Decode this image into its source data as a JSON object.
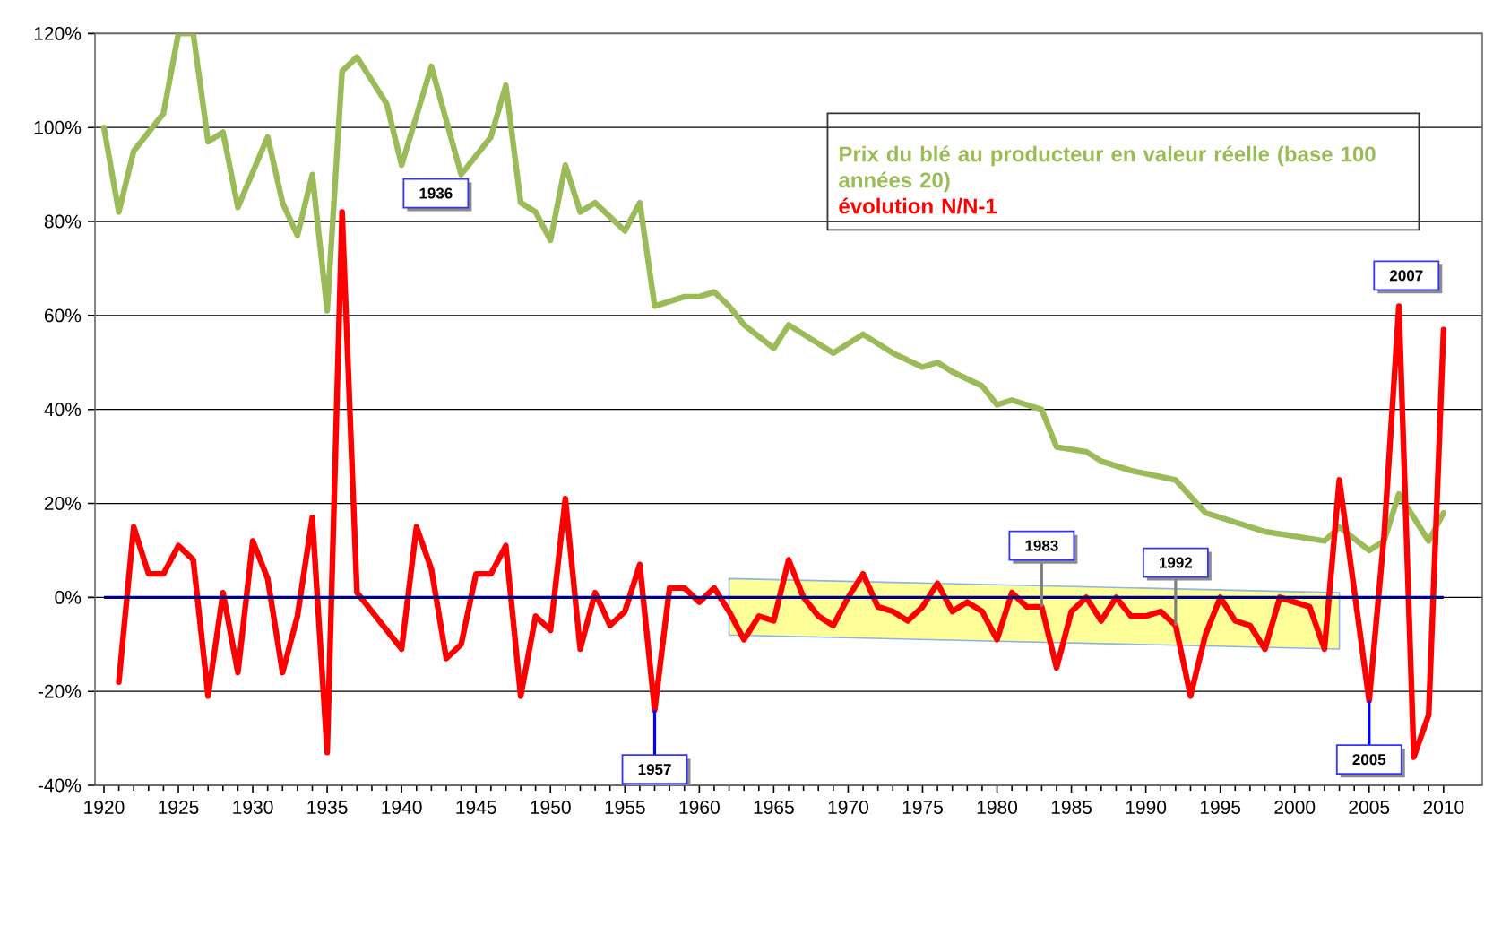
{
  "chart_data": {
    "type": "line",
    "xlim": [
      1919.4,
      2012.6
    ],
    "ylim": [
      -40,
      120
    ],
    "xticks": [
      1920,
      1925,
      1930,
      1935,
      1940,
      1945,
      1950,
      1955,
      1960,
      1965,
      1970,
      1975,
      1980,
      1985,
      1990,
      1995,
      2000,
      2005,
      2010
    ],
    "yticks": [
      {
        "value": -40,
        "label": "-40%"
      },
      {
        "value": -20,
        "label": "-20%"
      },
      {
        "value": 0,
        "label": "0%"
      },
      {
        "value": 20,
        "label": "20%"
      },
      {
        "value": 40,
        "label": "40%"
      },
      {
        "value": 60,
        "label": "60%"
      },
      {
        "value": 80,
        "label": "80%"
      },
      {
        "value": 100,
        "label": "100%"
      },
      {
        "value": 120,
        "label": "120%"
      }
    ],
    "grid": "y",
    "legend": "top right",
    "series": [
      {
        "type": "line",
        "color": "#ffff99",
        "x": [
          1962,
          2003
        ],
        "values": [
          null,
          null
        ],
        "lower": [
          -8,
          -11
        ],
        "upper": [
          4,
          1
        ]
      },
      {
        "name": "Prix du blé au producteur en valeur réelle (base 100 années 20)",
        "color": "#9bbb59",
        "x": [
          1920,
          1921,
          1922,
          1924,
          1925,
          1926,
          1927,
          1928,
          1929,
          1931,
          1932,
          1933,
          1934,
          1935,
          1936,
          1937,
          1939,
          1940,
          1942,
          1944,
          1946,
          1947,
          1948,
          1949,
          1950,
          1951,
          1952,
          1953,
          1955,
          1956,
          1957,
          1959,
          1960,
          1961,
          1962,
          1963,
          1965,
          1966,
          1969,
          1971,
          1973,
          1975,
          1976,
          1977,
          1979,
          1980,
          1981,
          1983,
          1984,
          1986,
          1987,
          1989,
          1992,
          1994,
          1996,
          1998,
          2000,
          2002,
          2003,
          2005,
          2006,
          2007,
          2009,
          2010
        ],
        "values": [
          100,
          82,
          95,
          103,
          120,
          120,
          97,
          99,
          83,
          98,
          84,
          77,
          90,
          61,
          112,
          115,
          105,
          92,
          113,
          90,
          98,
          109,
          84,
          82,
          76,
          92,
          82,
          84,
          78,
          84,
          62,
          64,
          64,
          65,
          62,
          58,
          53,
          58,
          52,
          56,
          52,
          49,
          50,
          48,
          45,
          41,
          42,
          40,
          32,
          31,
          29,
          27,
          25,
          18,
          16,
          14,
          13,
          12,
          15,
          10,
          12,
          22,
          12,
          18
        ]
      },
      {
        "name": "évolution N/N-1",
        "color": "#ff0000",
        "x": [
          1921,
          1922,
          1923,
          1924,
          1925,
          1926,
          1927,
          1928,
          1929,
          1930,
          1931,
          1932,
          1933,
          1934,
          1935,
          1936,
          1937,
          1938,
          1939,
          1940,
          1941,
          1942,
          1943,
          1944,
          1945,
          1946,
          1947,
          1948,
          1949,
          1950,
          1951,
          1952,
          1953,
          1954,
          1955,
          1956,
          1957,
          1958,
          1959,
          1960,
          1961,
          1962,
          1963,
          1964,
          1965,
          1966,
          1967,
          1968,
          1969,
          1970,
          1971,
          1972,
          1973,
          1974,
          1975,
          1976,
          1977,
          1978,
          1979,
          1980,
          1981,
          1982,
          1983,
          1984,
          1985,
          1986,
          1987,
          1988,
          1989,
          1990,
          1991,
          1992,
          1993,
          1994,
          1995,
          1996,
          1997,
          1998,
          1999,
          2000,
          2001,
          2002,
          2003,
          2005,
          2006,
          2007,
          2008,
          2009,
          2010
        ],
        "values": [
          -18,
          15,
          5,
          5,
          11,
          8,
          -21,
          1,
          -16,
          12,
          4,
          -16,
          -4,
          17,
          -33,
          82,
          1,
          -3,
          -7,
          -11,
          15,
          6,
          -13,
          -10,
          5,
          5,
          11,
          -21,
          -4,
          -7,
          21,
          -11,
          1,
          -6,
          -3,
          7,
          -24,
          2,
          2,
          -1,
          2,
          -3,
          -9,
          -4,
          -5,
          8,
          0,
          -4,
          -6,
          0,
          5,
          -2,
          -3,
          -5,
          -2,
          3,
          -3,
          -1,
          -3,
          -9,
          1,
          -2,
          -2,
          -15,
          -3,
          0,
          -5,
          0,
          -4,
          -4,
          -3,
          -6,
          -21,
          -8,
          0,
          -5,
          -6,
          -11,
          0,
          -1,
          -2,
          -11,
          25,
          -22,
          13,
          62,
          -34,
          -25,
          57
        ]
      }
    ],
    "ref_lines": [
      {
        "axis": "y",
        "value": 0,
        "color": "#000080"
      }
    ],
    "annotations": [
      "1936",
      {
        "text": "1957",
        "x": 1957,
        "y": -24
      },
      {
        "text": "1983",
        "x": 1983,
        "y": -2
      },
      {
        "text": "1992",
        "x": 1992,
        "y": -6
      },
      {
        "text": "2005",
        "x": 2005,
        "y": -22
      },
      {
        "text": "2007",
        "x": 2007,
        "y": 62
      }
    ]
  }
}
